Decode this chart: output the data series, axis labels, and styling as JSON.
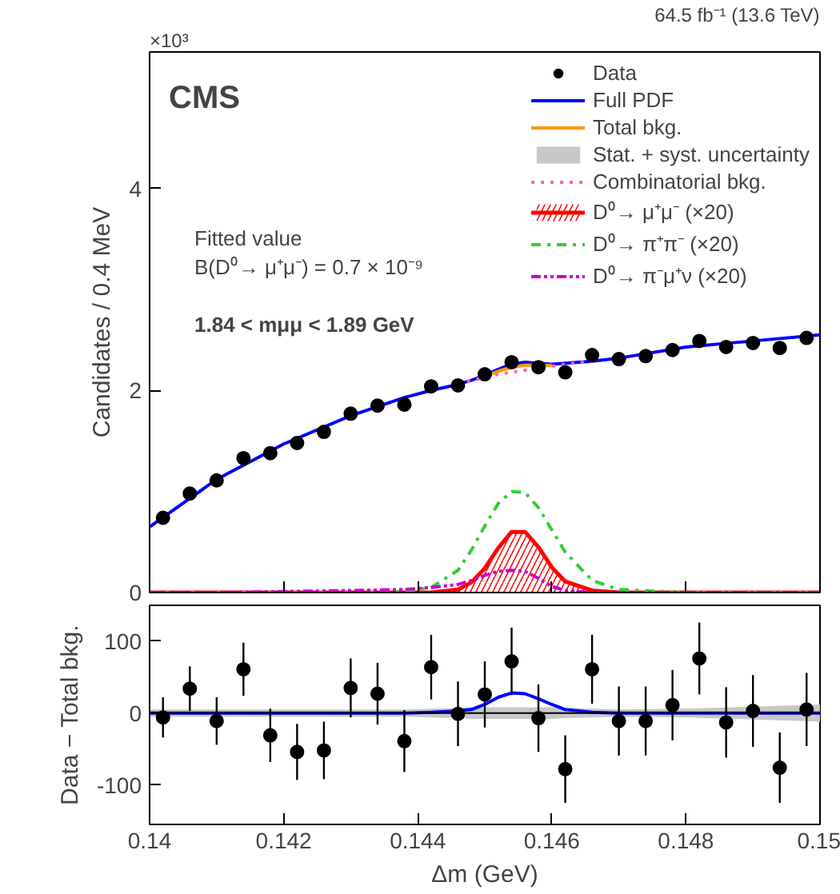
{
  "chart_data": [
    {
      "type": "line",
      "ylabel": "Candidates / 0.4 MeV",
      "xlim": [
        0.14,
        0.15
      ],
      "ylim": [
        0,
        5.35
      ],
      "xticks": [
        0.14,
        0.142,
        0.144,
        0.146,
        0.148,
        0.15
      ],
      "yticks": [
        0,
        2,
        4
      ],
      "tick_labels": "y",
      "legend": "top right",
      "grid": false,
      "annotations": [
        "×10³",
        "64.5 fb⁻¹ (13.6 TeV)",
        "CMS",
        "Fitted value",
        "B(D⁰→ μ⁺μ⁻) = 0.7 × 10⁻⁹",
        "1.84 < mμμ < 1.89 GeV"
      ],
      "x": [
        0.14,
        0.141,
        0.142,
        0.143,
        0.1438,
        0.1442,
        0.1446,
        0.1448,
        0.145,
        0.1452,
        0.1454,
        0.1456,
        0.1458,
        0.146,
        0.1462,
        0.1466,
        0.147,
        0.148,
        0.149,
        0.15
      ],
      "series": [
        {
          "name": "Data",
          "type": "scatter",
          "marker": "circle",
          "color": "#000000",
          "x": [
            0.1402,
            0.1406,
            0.141,
            0.1414,
            0.1418,
            0.1422,
            0.1426,
            0.143,
            0.1434,
            0.1438,
            0.1442,
            0.1446,
            0.145,
            0.1454,
            0.1458,
            0.1462,
            0.1466,
            0.147,
            0.1474,
            0.1478,
            0.1482,
            0.1486,
            0.149,
            0.1494,
            0.1498
          ],
          "values": [
            0.74,
            0.98,
            1.11,
            1.33,
            1.38,
            1.48,
            1.59,
            1.77,
            1.85,
            1.86,
            2.04,
            2.05,
            2.16,
            2.28,
            2.23,
            2.18,
            2.35,
            2.31,
            2.34,
            2.4,
            2.49,
            2.43,
            2.47,
            2.42,
            2.52
          ]
        },
        {
          "name": "Full PDF",
          "color": "#0000ff",
          "values": [
            0.65,
            1.12,
            1.47,
            1.75,
            1.93,
            2.0,
            2.06,
            2.1,
            2.15,
            2.21,
            2.26,
            2.28,
            2.27,
            2.26,
            2.27,
            2.29,
            2.32,
            2.43,
            2.49,
            2.55
          ]
        },
        {
          "name": "Total bkg.",
          "color": "#ff9900",
          "values": [
            null,
            null,
            null,
            null,
            null,
            null,
            null,
            null,
            2.14,
            2.19,
            2.23,
            2.25,
            2.25,
            2.25,
            null,
            null,
            null,
            null,
            null,
            null
          ]
        },
        {
          "name": "Combinatorial bkg.",
          "color": "#ff6699",
          "line_style": "dotted",
          "values": [
            null,
            null,
            null,
            null,
            null,
            null,
            2.06,
            2.1,
            2.13,
            2.16,
            2.18,
            2.2,
            2.22,
            2.24,
            2.26,
            2.29,
            null,
            null,
            null,
            null
          ]
        },
        {
          "name": "D⁰→ μ⁺μ⁻ (×20)",
          "type": "area",
          "color": "#ff0000",
          "values": [
            0,
            0,
            0,
            0,
            0,
            0,
            0.03,
            0.1,
            0.24,
            0.44,
            0.6,
            0.6,
            0.45,
            0.25,
            0.11,
            0.02,
            0,
            0,
            0,
            0
          ]
        },
        {
          "name": "D⁰→ π⁺π⁻ (×20)",
          "color": "#33cc33",
          "line_style": "dashdot",
          "values": [
            0,
            0,
            0,
            0,
            0.01,
            0.05,
            0.22,
            0.42,
            0.66,
            0.88,
            1.0,
            0.99,
            0.84,
            0.62,
            0.4,
            0.12,
            0.03,
            0,
            0,
            0
          ]
        },
        {
          "name": "D⁰→ π⁻μ⁺ν (×20)",
          "color": "#cc00cc",
          "line_style": "dashdotdot",
          "values": [
            0,
            0,
            0.01,
            0.02,
            0.03,
            0.05,
            0.08,
            0.12,
            0.17,
            0.21,
            0.22,
            0.21,
            0.14,
            0.06,
            0.02,
            0,
            0,
            0,
            0,
            0
          ]
        }
      ]
    },
    {
      "type": "line",
      "ylabel": "Data − Total bkg.",
      "xlabel": "Δm (GeV)",
      "xlim": [
        0.14,
        0.15
      ],
      "ylim": [
        -155,
        150
      ],
      "xticks": [
        0.14,
        0.142,
        0.144,
        0.146,
        0.148,
        0.15
      ],
      "yticks": [
        -100,
        0,
        100
      ],
      "grid": false,
      "x": [
        0.14,
        0.141,
        0.142,
        0.143,
        0.1438,
        0.1442,
        0.1446,
        0.1448,
        0.145,
        0.1452,
        0.1454,
        0.1456,
        0.1458,
        0.146,
        0.1462,
        0.1466,
        0.147,
        0.148,
        0.149,
        0.15
      ],
      "ref_lines": [
        {
          "axis": "y",
          "value": 0,
          "color": "#000000"
        }
      ],
      "series": [
        {
          "name": "Stat. + syst. uncertainty",
          "type": "area",
          "color": "#c8c8c8",
          "values": [
            null,
            null,
            null,
            null,
            null,
            null,
            null,
            null,
            null,
            null,
            null,
            null,
            null,
            null,
            null,
            null,
            null,
            null,
            null,
            null
          ],
          "lower": [
            -5,
            -5,
            -5,
            -5,
            -5,
            -6,
            -7,
            -8,
            -8,
            -8,
            -8,
            -8,
            -8,
            -8,
            -7,
            -6,
            -5,
            -6,
            -9,
            -12
          ],
          "upper": [
            5,
            5,
            5,
            5,
            5,
            6,
            7,
            8,
            8,
            8,
            8,
            8,
            8,
            8,
            7,
            6,
            5,
            6,
            9,
            12
          ]
        },
        {
          "color": "#0000ff",
          "values": [
            0,
            0,
            0,
            0,
            0,
            1,
            3,
            5,
            12,
            22,
            28,
            27,
            20,
            12,
            5,
            1,
            0,
            0,
            0,
            0
          ]
        },
        {
          "type": "scatter",
          "marker": "circle",
          "color": "#000000",
          "x": [
            0.1402,
            0.1406,
            0.141,
            0.1414,
            0.1418,
            0.1422,
            0.1426,
            0.143,
            0.1434,
            0.1438,
            0.1442,
            0.1446,
            0.145,
            0.1454,
            0.1458,
            0.1462,
            0.1466,
            0.147,
            0.1474,
            0.1478,
            0.1482,
            0.1486,
            0.149,
            0.1494,
            0.1498
          ],
          "values": [
            -6,
            34,
            -11,
            61,
            -31,
            -54,
            -52,
            35,
            27,
            -39,
            64,
            -1,
            26,
            72,
            -7,
            -78,
            61,
            -11,
            -11,
            11,
            76,
            -13,
            3,
            -76,
            5
          ],
          "errors": [
            28,
            31,
            33,
            37,
            37,
            39,
            40,
            41,
            43,
            43,
            45,
            45,
            46,
            47,
            47,
            47,
            48,
            48,
            48,
            49,
            50,
            49,
            50,
            49,
            51
          ]
        }
      ]
    }
  ]
}
